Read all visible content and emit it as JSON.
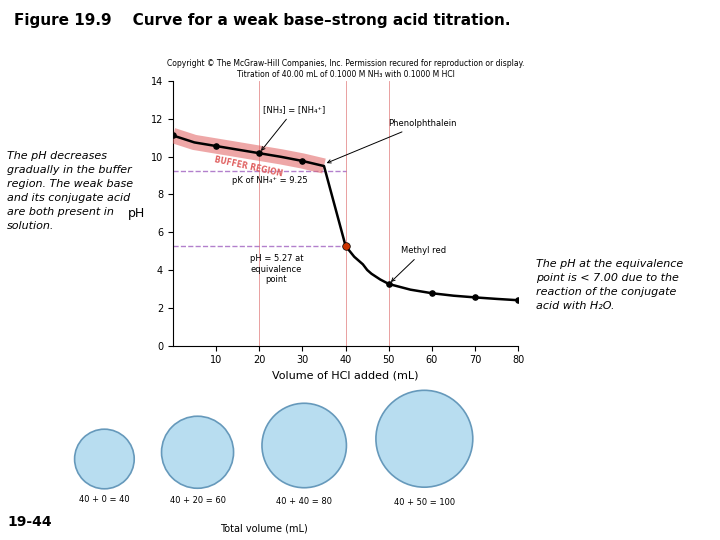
{
  "chart_data": {
    "type": "line",
    "title": "Figure 19.9",
    "subtitle": "    Curve for a weak base–strong acid titration.",
    "header_lines": [
      "Copyright © The McGraw-Hill Companies, Inc. Permission recured for reproduction or display.",
      "Titration of 40.00 mL of 0.1000 M NH₃ with 0.1000 M HCl"
    ],
    "notes": [
      "The pH decreases\ngradually in the buffer\nregion. The weak base\nand its conjugate acid\nare both present in\nsolution.",
      "The pH at the equivalence\npoint is < 7.00 due to the\nreaction of the conjugate\nacid with H₂O."
    ],
    "page_label": "19-44",
    "x_label": "Volume of HCl added (mL)",
    "y_label": "pH",
    "xlim": [
      0,
      80
    ],
    "ylim": [
      0,
      14
    ],
    "xticks": [
      10,
      20,
      30,
      40,
      50,
      60,
      70,
      80
    ],
    "yticks": [
      0,
      2,
      4,
      6,
      8,
      10,
      12,
      14
    ],
    "grid": false,
    "x": [
      0,
      5,
      10,
      15,
      20,
      25,
      30,
      35,
      40,
      42,
      44,
      45,
      46,
      48,
      50,
      55,
      60,
      65,
      70,
      75,
      80
    ],
    "values": [
      11.12,
      10.75,
      10.56,
      10.37,
      10.18,
      9.99,
      9.77,
      9.5,
      5.27,
      4.7,
      4.3,
      4.0,
      3.8,
      3.5,
      3.26,
      2.96,
      2.77,
      2.64,
      2.55,
      2.47,
      2.4
    ],
    "color": "#000000",
    "points": {
      "x": [
        0,
        10,
        20,
        30,
        40,
        50,
        60,
        70,
        80
      ],
      "y": [
        11.12,
        10.56,
        10.18,
        9.77,
        5.27,
        3.26,
        2.77,
        2.55,
        2.4
      ],
      "color": "#000000"
    },
    "equivalence_point": {
      "x": 40,
      "y": 5.27,
      "color": "#cc3300",
      "label": "pH = 5.27 at\nequivalence\npoint"
    },
    "h_lines": {
      "values": [
        9.25,
        5.27
      ],
      "color": "#9955bb",
      "line_style": "dashed"
    },
    "v_lines": {
      "values": [
        0,
        20,
        40,
        50
      ],
      "color": "#cc2222",
      "line_style": "solid"
    },
    "pka_label": "pK⁡ of NH₄⁺ = 9.25",
    "buffer_region": {
      "label": "BUFFER REGION",
      "x": [
        0,
        35
      ],
      "color": "#e06060"
    },
    "arrow_annotations": [
      {
        "text": "[NH₃] = [NH₄⁺]",
        "x": 20,
        "y": 10.18
      },
      {
        "text": "Phenolphthalein",
        "x": 35,
        "y": 9.6
      },
      {
        "text": "Methyl red",
        "x": 50,
        "y": 3.26
      }
    ],
    "bottom_labels": [
      "40 + 0 = 40",
      "40 + 20 = 60",
      "40 + 40 = 80",
      "40 + 50 = 100"
    ],
    "bottom_title": "Total volume (mL)"
  }
}
